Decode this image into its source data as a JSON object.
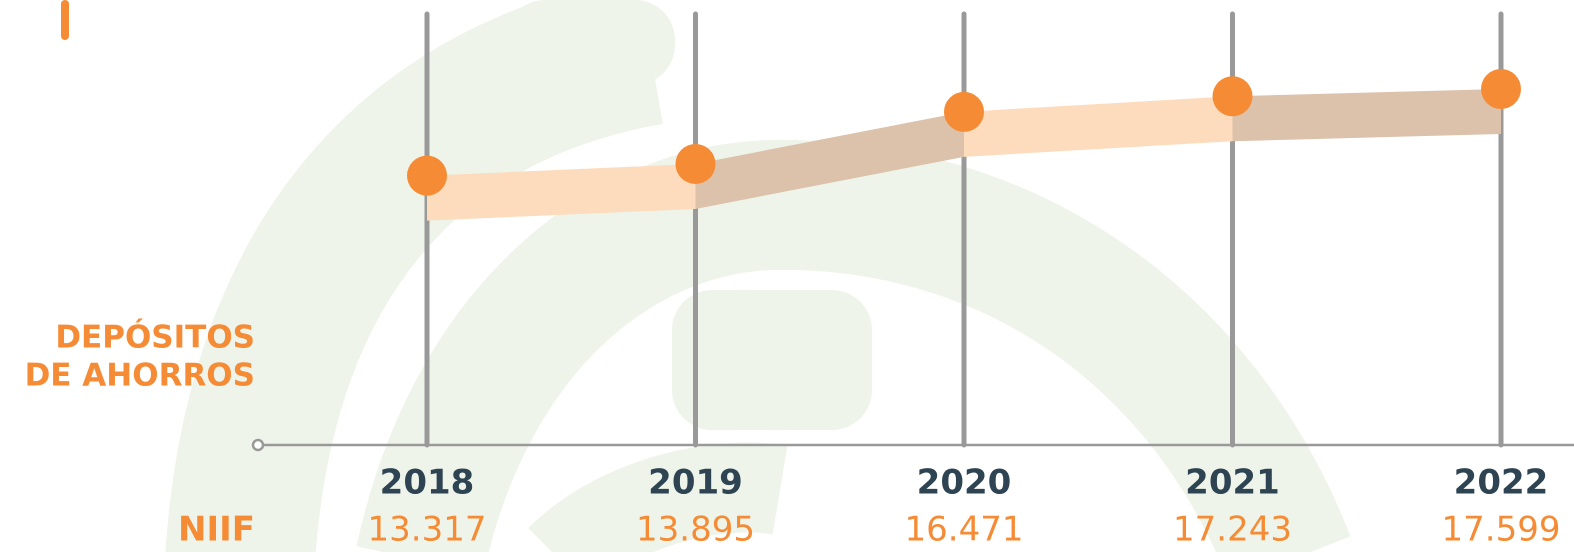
{
  "chart_data": {
    "type": "line",
    "title": [
      "DEPÓSITOS",
      "DE AHORROS"
    ],
    "categories": [
      "2018",
      "2019",
      "2020",
      "2021",
      "2022"
    ],
    "series": [
      {
        "name": "NIIF",
        "color": "#f58b34",
        "values": [
          13317,
          13895,
          16471,
          17243,
          17599
        ],
        "value_labels": [
          "13.317",
          "13.895",
          "16.471",
          "17.243",
          "17.599"
        ]
      }
    ],
    "ylim": [
      0,
      22000
    ],
    "grid": false
  }
}
